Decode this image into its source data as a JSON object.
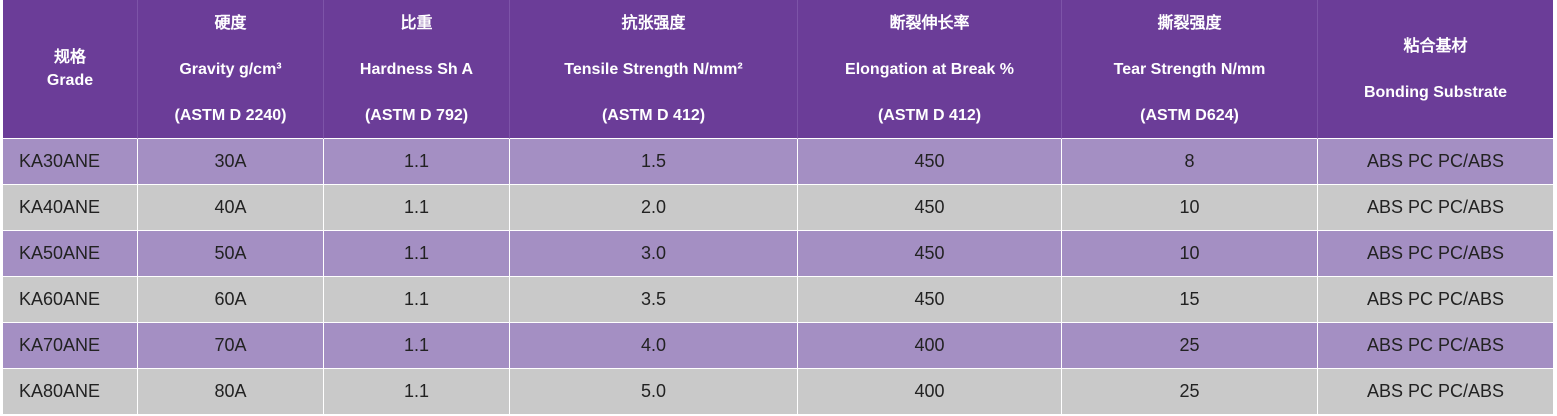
{
  "headers": [
    {
      "zh": "规格",
      "en": "Grade",
      "std": ""
    },
    {
      "zh": "硬度",
      "en": "Gravity g/cm³",
      "std": "(ASTM D 2240)"
    },
    {
      "zh": "比重",
      "en": "Hardness Sh A",
      "std": "(ASTM D 792)"
    },
    {
      "zh": "抗张强度",
      "en": "Tensile Strength N/mm²",
      "std": "(ASTM D 412)"
    },
    {
      "zh": "断裂伸长率",
      "en": "Elongation at Break %",
      "std": "(ASTM D 412)"
    },
    {
      "zh": "撕裂强度",
      "en": "Tear Strength N/mm",
      "std": "(ASTM D624)"
    },
    {
      "zh": "粘合基材",
      "en": "Bonding Substrate",
      "std": ""
    }
  ],
  "rows": [
    [
      "KA30ANE",
      "30A",
      "1.1",
      "1.5",
      "450",
      "8",
      "ABS PC PC/ABS"
    ],
    [
      "KA40ANE",
      "40A",
      "1.1",
      "2.0",
      "450",
      "10",
      "ABS PC PC/ABS"
    ],
    [
      "KA50ANE",
      "50A",
      "1.1",
      "3.0",
      "450",
      "10",
      "ABS PC PC/ABS"
    ],
    [
      "KA60ANE",
      "60A",
      "1.1",
      "3.5",
      "450",
      "15",
      "ABS PC PC/ABS"
    ],
    [
      "KA70ANE",
      "70A",
      "1.1",
      "4.0",
      "400",
      "25",
      "ABS PC PC/ABS"
    ],
    [
      "KA80ANE",
      "80A",
      "1.1",
      "5.0",
      "400",
      "25",
      "ABS PC PC/ABS"
    ]
  ],
  "colors": {
    "header_bg": "#6b3d98",
    "row_purple": "#a48fc3",
    "row_gray": "#c9c9c9"
  }
}
